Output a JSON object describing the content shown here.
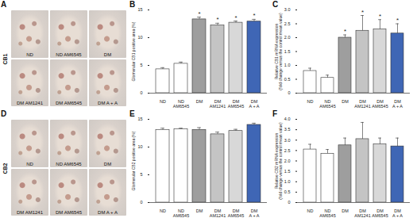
{
  "micrographs": [
    {
      "title": "A",
      "row_label": "CB1",
      "labels": [
        "ND",
        "ND AM6545",
        "DM",
        "DM AM1241",
        "DM AM6545",
        "DM A + A"
      ]
    },
    {
      "title": "D",
      "row_label": "CB2",
      "labels": [
        "ND",
        "ND AM6545",
        "DM",
        "DM AM1241",
        "DM AM6545",
        "DM A + A"
      ]
    }
  ],
  "chart_data": [
    {
      "type": "bar",
      "title": "B",
      "categories": [
        "ND",
        "ND\nAM6545",
        "DM",
        "DM\nAM1241",
        "DM\nAM6545",
        "DM\nA + A"
      ],
      "values": [
        4.3,
        5.3,
        13.3,
        12.2,
        12.7,
        12.9
      ],
      "errors": [
        0.3,
        0.3,
        0.4,
        0.4,
        0.3,
        0.4
      ],
      "colors": [
        "#ffffff",
        "#ffffff",
        "#9e9e9e",
        "#c4c4c4",
        "#d8d8d8",
        "#3f66b5"
      ],
      "y_label": "Glomerular CB1 positive area (%)",
      "ylim": [
        0,
        15
      ],
      "yticks": [
        0,
        5,
        10,
        15
      ],
      "annotations": [
        {
          "category": "DM",
          "text": "*"
        },
        {
          "category": "DM\nAM1241",
          "text": "*"
        },
        {
          "category": "DM\nAM6545",
          "text": "*"
        },
        {
          "category": "DM\nA + A",
          "text": "*"
        }
      ]
    },
    {
      "type": "bar",
      "title": "C",
      "categories": [
        "ND",
        "ND\nAM6545",
        "DM",
        "DM\nAM1241",
        "DM\nAM6545",
        "DM\nA + A"
      ],
      "values": [
        0.8,
        0.55,
        2.0,
        2.25,
        2.3,
        2.15
      ],
      "errors": [
        0.1,
        0.1,
        0.1,
        0.55,
        0.35,
        0.35
      ],
      "colors": [
        "#ffffff",
        "#ffffff",
        "#9e9e9e",
        "#c4c4c4",
        "#d8d8d8",
        "#3f66b5"
      ],
      "y_label": "Relative CB1 mRNA expression\n(fold change versus the control mean value)",
      "ylim": [
        0,
        3
      ],
      "yticks": [
        0,
        0.5,
        {
          "value": 1,
          "label": "1.0"
        },
        1.5,
        {
          "value": 2,
          "label": "2.0"
        },
        2.5,
        {
          "value": 3,
          "label": "3.0"
        }
      ],
      "annotations": [
        {
          "category": "DM",
          "text": "*"
        },
        {
          "category": "DM\nAM1241",
          "text": "*"
        },
        {
          "category": "DM\nAM6545",
          "text": "*"
        },
        {
          "category": "DM\nA + A",
          "text": "*"
        }
      ]
    },
    {
      "type": "bar",
      "title": "E",
      "categories": [
        "ND",
        "ND\nAM6545",
        "DM",
        "DM\nAM1241",
        "DM\nAM6545",
        "DM\nA + A"
      ],
      "values": [
        13.1,
        13.2,
        13.1,
        12.3,
        12.9,
        14.0
      ],
      "errors": [
        0.3,
        0.2,
        0.4,
        0.4,
        0.3,
        0.3
      ],
      "colors": [
        "#ffffff",
        "#ffffff",
        "#9e9e9e",
        "#c4c4c4",
        "#d8d8d8",
        "#3f66b5"
      ],
      "y_label": "Glomerular CB2 positive area (%)",
      "ylim": [
        0,
        15
      ],
      "yticks": [
        0,
        5,
        10,
        15
      ]
    },
    {
      "type": "bar",
      "title": "F",
      "categories": [
        "ND",
        "ND\nAM6545",
        "DM",
        "DM\nAM1241",
        "DM\nAM6545",
        "DM\nA + A"
      ],
      "values": [
        2.55,
        2.35,
        2.75,
        3.05,
        2.8,
        2.7
      ],
      "errors": [
        0.25,
        0.2,
        0.35,
        0.8,
        0.3,
        0.4
      ],
      "colors": [
        "#ffffff",
        "#ffffff",
        "#9e9e9e",
        "#c4c4c4",
        "#d8d8d8",
        "#3f66b5"
      ],
      "y_label": "Relative CB2 mRNA expression\n(fold change versus the control mean value)",
      "ylim": [
        0,
        4
      ],
      "yticks": [
        0,
        0.5,
        {
          "value": 1,
          "label": "1.0"
        },
        1.5,
        {
          "value": 2,
          "label": "2.0"
        },
        2.5,
        {
          "value": 3,
          "label": "3.0"
        },
        3.5,
        {
          "value": 4,
          "label": "4.0"
        }
      ]
    }
  ]
}
